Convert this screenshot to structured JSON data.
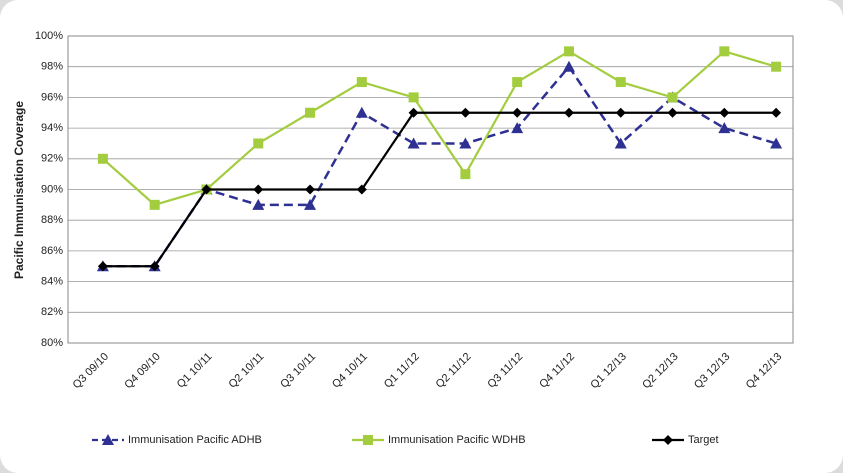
{
  "chart_data": {
    "type": "line",
    "y_label": "Pacific Immunisation Coverage",
    "categories": [
      "Q3 09/10",
      "Q4 09/10",
      "Q1 10/11",
      "Q2 10/11",
      "Q3 10/11",
      "Q4 10/11",
      "Q1 11/12",
      "Q2 11/12",
      "Q3 11/12",
      "Q4 11/12",
      "Q1 12/13",
      "Q2 12/13",
      "Q3 12/13",
      "Q4 12/13"
    ],
    "series": [
      {
        "name": "Immunisation Pacific ADHB",
        "color": "#2e3192",
        "dash": true,
        "marker": "triangle",
        "values": [
          85,
          85,
          90,
          89,
          89,
          95,
          93,
          93,
          94,
          98,
          93,
          96,
          94,
          93
        ]
      },
      {
        "name": "Immunisation Pacific WDHB",
        "color": "#a3cd3f",
        "dash": false,
        "marker": "square",
        "values": [
          92,
          89,
          90,
          93,
          95,
          97,
          96,
          91,
          97,
          99,
          97,
          96,
          99,
          98
        ]
      },
      {
        "name": "Target",
        "color": "#000000",
        "dash": false,
        "marker": "diamond",
        "values": [
          85,
          85,
          90,
          90,
          90,
          90,
          95,
          95,
          95,
          95,
          95,
          95,
          95,
          95
        ]
      }
    ],
    "ylim": [
      80,
      100
    ],
    "yticks": [
      {
        "value": 80,
        "label": "80%"
      },
      {
        "value": 82,
        "label": "82%"
      },
      {
        "value": 84,
        "label": "84%"
      },
      {
        "value": 86,
        "label": "86%"
      },
      {
        "value": 88,
        "label": "88%"
      },
      {
        "value": 90,
        "label": "90%"
      },
      {
        "value": 92,
        "label": "92%"
      },
      {
        "value": 94,
        "label": "94%"
      },
      {
        "value": 96,
        "label": "96%"
      },
      {
        "value": 98,
        "label": "98%"
      },
      {
        "value": 100,
        "label": "100%"
      }
    ],
    "grid": true,
    "legend": "bottom"
  }
}
